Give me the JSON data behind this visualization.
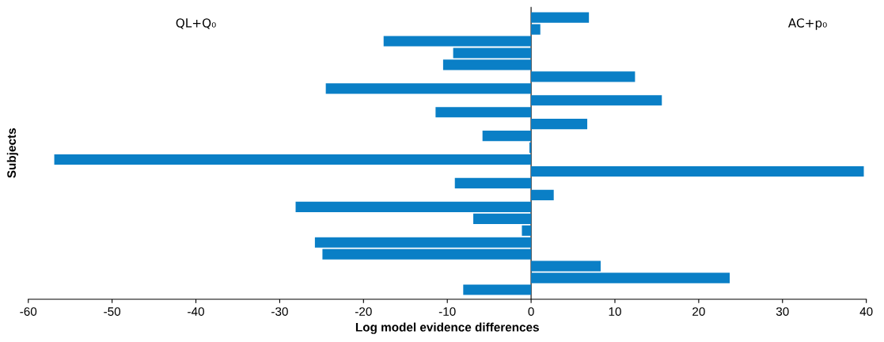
{
  "chart_data": {
    "type": "bar",
    "orientation": "horizontal",
    "xlabel": "Log model evidence differences",
    "ylabel": "Subjects",
    "categories": [
      null,
      null,
      null,
      null,
      null,
      null,
      null,
      null,
      null,
      null,
      null,
      null,
      null,
      null,
      null,
      null,
      null,
      null,
      null,
      null,
      null,
      null,
      null,
      null
    ],
    "values": [
      6.9,
      1.1,
      -17.6,
      -9.3,
      -10.5,
      12.4,
      -24.5,
      15.6,
      -11.4,
      6.7,
      -5.8,
      -0.2,
      -56.9,
      39.7,
      -9.1,
      2.7,
      -28.1,
      -6.9,
      -1.1,
      -25.8,
      -24.9,
      8.3,
      23.7,
      -8.1
    ],
    "color": "#0a7fc6",
    "xlim": [
      -60,
      40
    ],
    "xticks": [
      -60,
      -50,
      -40,
      -30,
      -20,
      -10,
      0,
      10,
      20,
      30,
      40
    ],
    "annotations": [
      "QL+Q₀",
      "AC+p₀"
    ],
    "ref_lines": [
      {
        "axis": "x",
        "value": 0,
        "color": "#333333"
      }
    ],
    "legend": false
  }
}
